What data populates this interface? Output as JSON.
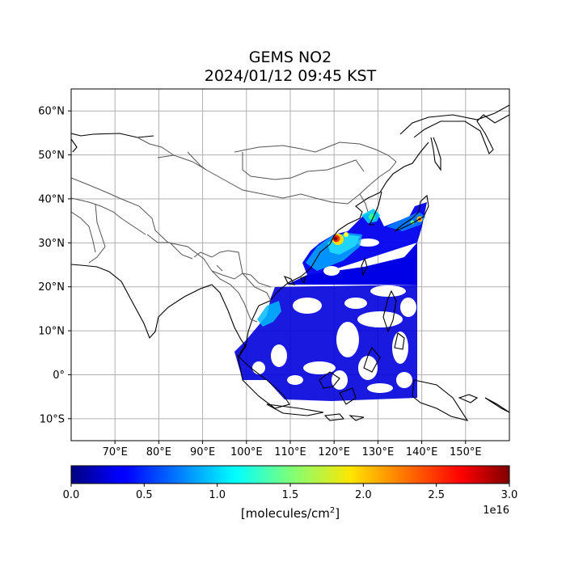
{
  "title": {
    "line1": "GEMS NO2",
    "line2": "2024/01/12 09:45 KST"
  },
  "map": {
    "lon_range": [
      60,
      160
    ],
    "lat_range": [
      -15,
      65
    ],
    "lat_ticks": [
      {
        "value": 60,
        "label": "60°N"
      },
      {
        "value": 50,
        "label": "50°N"
      },
      {
        "value": 40,
        "label": "40°N"
      },
      {
        "value": 30,
        "label": "30°N"
      },
      {
        "value": 20,
        "label": "20°N"
      },
      {
        "value": 10,
        "label": "10°N"
      },
      {
        "value": 0,
        "label": "0°"
      },
      {
        "value": -10,
        "label": "10°S"
      }
    ],
    "lon_ticks": [
      {
        "value": 70,
        "label": "70°E"
      },
      {
        "value": 80,
        "label": "80°E"
      },
      {
        "value": 90,
        "label": "90°E"
      },
      {
        "value": 100,
        "label": "100°E"
      },
      {
        "value": 110,
        "label": "110°E"
      },
      {
        "value": 120,
        "label": "120°E"
      },
      {
        "value": 130,
        "label": "130°E"
      },
      {
        "value": 140,
        "label": "140°E"
      },
      {
        "value": 150,
        "label": "150°E"
      }
    ],
    "grid": true
  },
  "colorbar": {
    "colormap": "jet",
    "range": [
      0.0,
      3.0
    ],
    "ticks": [
      "0.0",
      "0.5",
      "1.0",
      "1.5",
      "2.0",
      "2.5",
      "3.0"
    ],
    "label_text": "[molecules/cm",
    "label_sup": "2",
    "label_end": "]",
    "exponent": "1e16"
  }
}
